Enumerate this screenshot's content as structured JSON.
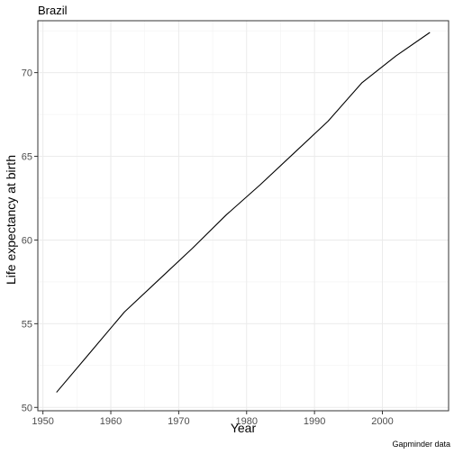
{
  "chart_data": {
    "type": "line",
    "title": "Brazil",
    "xlabel": "Year",
    "ylabel": "Life expectancy at birth",
    "caption": "Gapminder data",
    "xlim": [
      1949.25,
      2009.75
    ],
    "ylim": [
      49.8,
      73.1
    ],
    "x_ticks": [
      1950,
      1960,
      1970,
      1980,
      1990,
      2000
    ],
    "y_ticks": [
      50,
      55,
      60,
      65,
      70
    ],
    "grid": true,
    "series": [
      {
        "x": [
          1952,
          1957,
          1962,
          1967,
          1972,
          1977,
          1982,
          1987,
          1992,
          1997,
          2002,
          2007
        ],
        "values": [
          50.9,
          53.3,
          55.7,
          57.6,
          59.5,
          61.5,
          63.3,
          65.2,
          67.1,
          69.4,
          71.0,
          72.4
        ]
      }
    ]
  }
}
